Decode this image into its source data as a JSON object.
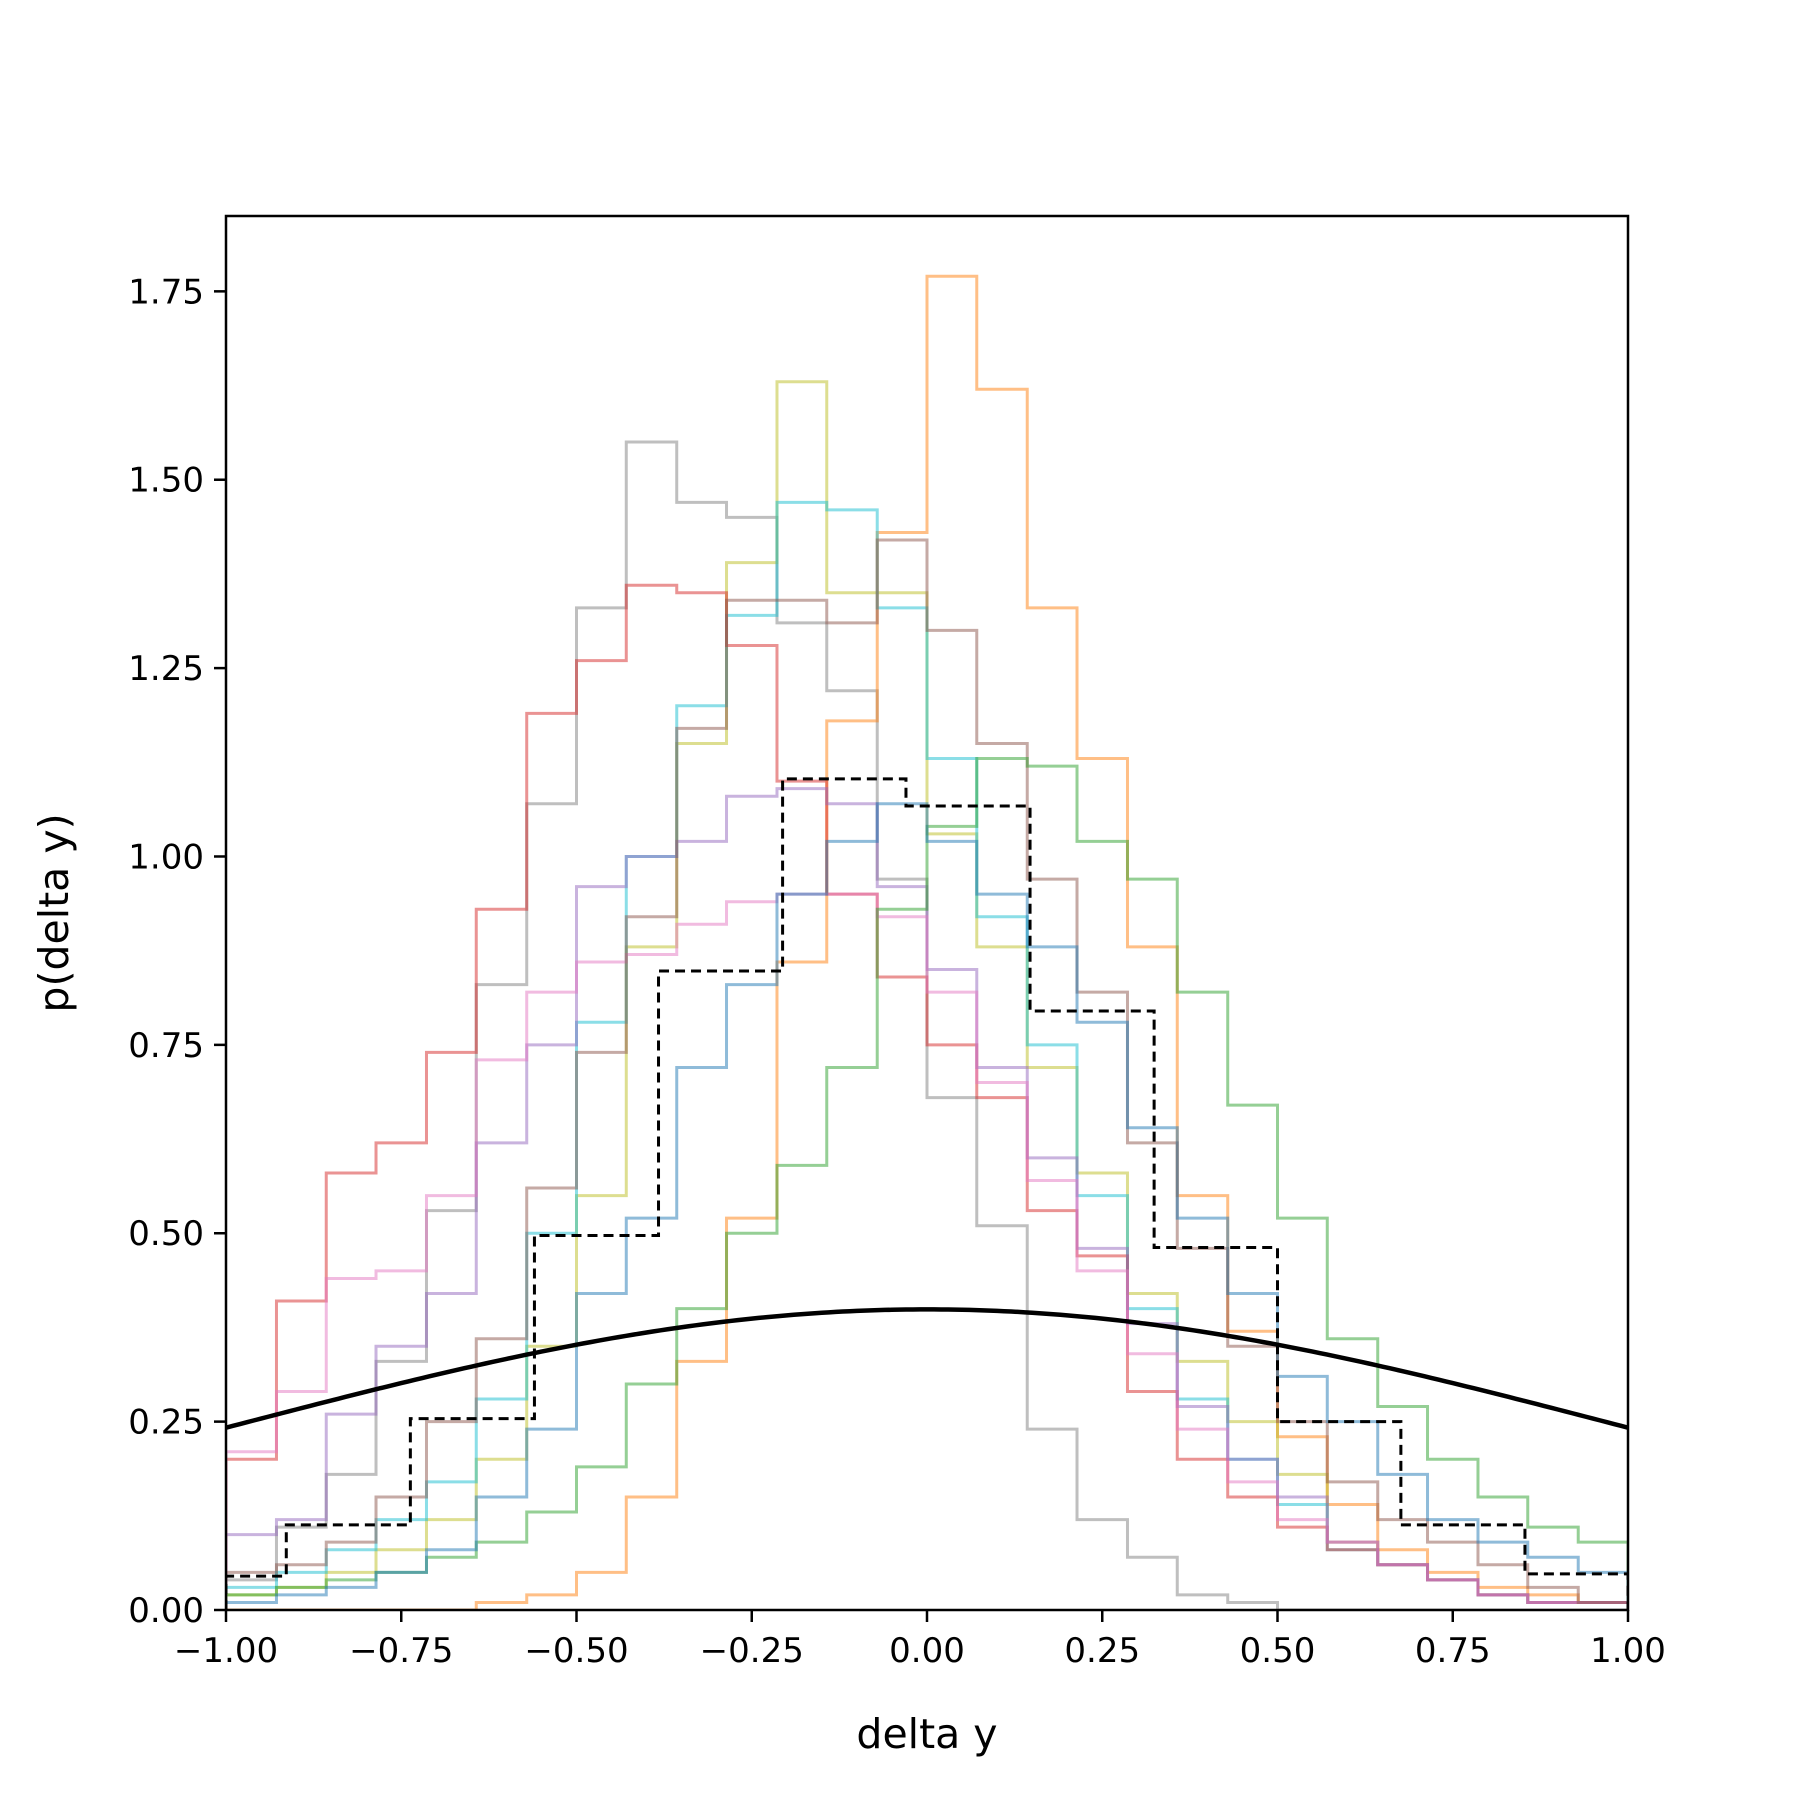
{
  "chart_data": {
    "type": "histogram",
    "xlabel": "delta y",
    "ylabel": "p(delta y)",
    "xlim": [
      -1.0,
      1.0
    ],
    "ylim": [
      0.0,
      1.85
    ],
    "x_ticks": [
      "−1.00",
      "−0.75",
      "−0.50",
      "−0.25",
      "0.00",
      "0.25",
      "0.50",
      "0.75",
      "1.00"
    ],
    "x_tick_values": [
      -1.0,
      -0.75,
      -0.5,
      -0.25,
      0.0,
      0.25,
      0.5,
      0.75,
      1.0
    ],
    "y_ticks": [
      "0.00",
      "0.25",
      "0.50",
      "0.75",
      "1.00",
      "1.25",
      "1.50",
      "1.75"
    ],
    "y_tick_values": [
      0.0,
      0.25,
      0.5,
      0.75,
      1.0,
      1.25,
      1.5,
      1.75
    ],
    "grid": false,
    "legend": "none",
    "series": [
      {
        "style": "step",
        "color": "#7f7f7f",
        "edges": [
          -1.0,
          -0.928,
          -0.857,
          -0.786,
          -0.714,
          -0.643,
          -0.571,
          -0.5,
          -0.429,
          -0.357,
          -0.286,
          -0.214,
          -0.143,
          -0.071,
          0.0,
          0.071,
          0.143,
          0.214,
          0.286,
          0.357,
          0.429,
          0.5,
          0.571,
          0.643,
          0.714,
          0.786,
          0.857,
          0.929,
          1.0
        ],
        "values": [
          0.04,
          0.11,
          0.18,
          0.33,
          0.53,
          0.83,
          1.07,
          1.33,
          1.55,
          1.47,
          1.45,
          1.31,
          1.22,
          0.97,
          0.68,
          0.51,
          0.24,
          0.12,
          0.07,
          0.02,
          0.01,
          0.0,
          0.0,
          0.0,
          0.0,
          0.0,
          0.0,
          0.0
        ]
      },
      {
        "style": "step",
        "color": "#ff7f0e",
        "edges": [
          -1.0,
          -0.928,
          -0.857,
          -0.786,
          -0.714,
          -0.643,
          -0.571,
          -0.5,
          -0.429,
          -0.357,
          -0.286,
          -0.214,
          -0.143,
          -0.071,
          0.0,
          0.071,
          0.143,
          0.214,
          0.286,
          0.357,
          0.429,
          0.5,
          0.571,
          0.643,
          0.714,
          0.786,
          0.857,
          0.929,
          1.0
        ],
        "values": [
          0.0,
          0.0,
          0.0,
          0.0,
          0.0,
          0.01,
          0.02,
          0.05,
          0.15,
          0.33,
          0.52,
          0.86,
          1.18,
          1.43,
          1.77,
          1.62,
          1.33,
          1.13,
          0.88,
          0.55,
          0.37,
          0.23,
          0.14,
          0.08,
          0.05,
          0.03,
          0.02,
          0.01
        ]
      },
      {
        "style": "step",
        "color": "#bcbd22",
        "edges": [
          -1.0,
          -0.928,
          -0.857,
          -0.786,
          -0.714,
          -0.643,
          -0.571,
          -0.5,
          -0.429,
          -0.357,
          -0.286,
          -0.214,
          -0.143,
          -0.071,
          0.0,
          0.071,
          0.143,
          0.214,
          0.286,
          0.357,
          0.429,
          0.5,
          0.571,
          0.643,
          0.714,
          0.786,
          0.857,
          0.929,
          1.0
        ],
        "values": [
          0.02,
          0.03,
          0.05,
          0.08,
          0.12,
          0.2,
          0.35,
          0.55,
          0.88,
          1.15,
          1.39,
          1.63,
          1.35,
          1.35,
          1.03,
          0.88,
          0.72,
          0.58,
          0.42,
          0.33,
          0.25,
          0.18,
          0.09,
          0.06,
          0.04,
          0.02,
          0.01,
          0.01
        ]
      },
      {
        "style": "step",
        "color": "#17becf",
        "edges": [
          -1.0,
          -0.928,
          -0.857,
          -0.786,
          -0.714,
          -0.643,
          -0.571,
          -0.5,
          -0.429,
          -0.357,
          -0.286,
          -0.214,
          -0.143,
          -0.071,
          0.0,
          0.071,
          0.143,
          0.214,
          0.286,
          0.357,
          0.429,
          0.5,
          0.571,
          0.643,
          0.714,
          0.786,
          0.857,
          0.929,
          1.0
        ],
        "values": [
          0.03,
          0.05,
          0.08,
          0.12,
          0.17,
          0.28,
          0.5,
          0.78,
          1.0,
          1.2,
          1.32,
          1.47,
          1.46,
          1.33,
          1.13,
          0.92,
          0.75,
          0.55,
          0.4,
          0.28,
          0.2,
          0.14,
          0.08,
          0.06,
          0.04,
          0.02,
          0.01,
          0.01
        ]
      },
      {
        "style": "step",
        "color": "#d62728",
        "edges": [
          -1.0,
          -0.928,
          -0.857,
          -0.786,
          -0.714,
          -0.643,
          -0.571,
          -0.5,
          -0.429,
          -0.357,
          -0.286,
          -0.214,
          -0.143,
          -0.071,
          0.0,
          0.071,
          0.143,
          0.214,
          0.286,
          0.357,
          0.429,
          0.5,
          0.571,
          0.643,
          0.714,
          0.786,
          0.857,
          0.929,
          1.0
        ],
        "values": [
          0.2,
          0.41,
          0.58,
          0.62,
          0.74,
          0.93,
          1.19,
          1.26,
          1.36,
          1.35,
          1.28,
          1.1,
          0.95,
          0.84,
          0.75,
          0.68,
          0.53,
          0.47,
          0.29,
          0.2,
          0.15,
          0.11,
          0.08,
          0.06,
          0.04,
          0.02,
          0.01,
          0.01
        ]
      },
      {
        "style": "step",
        "color": "#9467bd",
        "edges": [
          -1.0,
          -0.928,
          -0.857,
          -0.786,
          -0.714,
          -0.643,
          -0.571,
          -0.5,
          -0.429,
          -0.357,
          -0.286,
          -0.214,
          -0.143,
          -0.071,
          0.0,
          0.071,
          0.143,
          0.214,
          0.286,
          0.357,
          0.429,
          0.5,
          0.571,
          0.643,
          0.714,
          0.786,
          0.857,
          0.929,
          1.0
        ],
        "values": [
          0.1,
          0.12,
          0.26,
          0.35,
          0.42,
          0.62,
          0.75,
          0.96,
          1.0,
          1.02,
          1.08,
          1.09,
          1.07,
          0.96,
          0.85,
          0.72,
          0.6,
          0.48,
          0.38,
          0.27,
          0.2,
          0.15,
          0.09,
          0.06,
          0.04,
          0.02,
          0.01,
          0.01
        ]
      },
      {
        "style": "step",
        "color": "#e377c2",
        "edges": [
          -1.0,
          -0.928,
          -0.857,
          -0.786,
          -0.714,
          -0.643,
          -0.571,
          -0.5,
          -0.429,
          -0.357,
          -0.286,
          -0.214,
          -0.143,
          -0.071,
          0.0,
          0.071,
          0.143,
          0.214,
          0.286,
          0.357,
          0.429,
          0.5,
          0.571,
          0.643,
          0.714,
          0.786,
          0.857,
          0.929,
          1.0
        ],
        "values": [
          0.21,
          0.29,
          0.44,
          0.45,
          0.55,
          0.73,
          0.82,
          0.86,
          0.87,
          0.91,
          0.94,
          0.95,
          0.95,
          0.92,
          0.82,
          0.7,
          0.57,
          0.45,
          0.34,
          0.24,
          0.17,
          0.12,
          0.09,
          0.06,
          0.04,
          0.02,
          0.01,
          0.01
        ]
      },
      {
        "style": "step",
        "color": "#8c564b",
        "edges": [
          -1.0,
          -0.928,
          -0.857,
          -0.786,
          -0.714,
          -0.643,
          -0.571,
          -0.5,
          -0.429,
          -0.357,
          -0.286,
          -0.214,
          -0.143,
          -0.071,
          0.0,
          0.071,
          0.143,
          0.214,
          0.286,
          0.357,
          0.429,
          0.5,
          0.571,
          0.643,
          0.714,
          0.786,
          0.857,
          0.929,
          1.0
        ],
        "values": [
          0.05,
          0.06,
          0.09,
          0.15,
          0.25,
          0.36,
          0.56,
          0.74,
          0.92,
          1.17,
          1.34,
          1.34,
          1.31,
          1.42,
          1.3,
          1.15,
          0.97,
          0.82,
          0.62,
          0.48,
          0.35,
          0.25,
          0.17,
          0.12,
          0.09,
          0.06,
          0.03,
          0.01
        ]
      },
      {
        "style": "step",
        "color": "#2ca02c",
        "edges": [
          -1.0,
          -0.928,
          -0.857,
          -0.786,
          -0.714,
          -0.643,
          -0.571,
          -0.5,
          -0.429,
          -0.357,
          -0.286,
          -0.214,
          -0.143,
          -0.071,
          0.0,
          0.071,
          0.143,
          0.214,
          0.286,
          0.357,
          0.429,
          0.5,
          0.571,
          0.643,
          0.714,
          0.786,
          0.857,
          0.929,
          1.0
        ],
        "values": [
          0.02,
          0.03,
          0.04,
          0.05,
          0.07,
          0.09,
          0.13,
          0.19,
          0.3,
          0.4,
          0.5,
          0.59,
          0.72,
          0.93,
          1.04,
          1.13,
          1.12,
          1.02,
          0.97,
          0.82,
          0.67,
          0.52,
          0.36,
          0.27,
          0.2,
          0.15,
          0.11,
          0.09
        ]
      },
      {
        "style": "step",
        "color": "#1f77b4",
        "edges": [
          -1.0,
          -0.928,
          -0.857,
          -0.786,
          -0.714,
          -0.643,
          -0.571,
          -0.5,
          -0.429,
          -0.357,
          -0.286,
          -0.214,
          -0.143,
          -0.071,
          0.0,
          0.071,
          0.143,
          0.214,
          0.286,
          0.357,
          0.429,
          0.5,
          0.571,
          0.643,
          0.714,
          0.786,
          0.857,
          0.929,
          1.0
        ],
        "values": [
          0.01,
          0.02,
          0.03,
          0.05,
          0.08,
          0.15,
          0.24,
          0.42,
          0.52,
          0.72,
          0.83,
          0.95,
          1.02,
          1.07,
          1.02,
          0.95,
          0.88,
          0.78,
          0.64,
          0.52,
          0.42,
          0.31,
          0.25,
          0.18,
          0.12,
          0.09,
          0.07,
          0.05
        ]
      },
      {
        "style": "step",
        "color": "#000000",
        "dashed": true,
        "solid_alpha": 1.0,
        "edges": [
          -1.0,
          -0.914,
          -0.737,
          -0.56,
          -0.383,
          -0.206,
          -0.03,
          0.147,
          0.324,
          0.5,
          0.676,
          0.853,
          1.0
        ],
        "values": [
          0.045,
          0.113,
          0.254,
          0.497,
          0.848,
          1.103,
          1.067,
          0.795,
          0.481,
          0.25,
          0.113,
          0.048
        ]
      }
    ],
    "curve": {
      "style": "line",
      "color": "#000000",
      "function": "normal pdf, mean 0, sd 1",
      "x": [
        -1.0,
        -0.9,
        -0.8,
        -0.7,
        -0.6,
        -0.5,
        -0.4,
        -0.3,
        -0.2,
        -0.1,
        0.0,
        0.1,
        0.2,
        0.3,
        0.4,
        0.5,
        0.6,
        0.7,
        0.8,
        0.9,
        1.0
      ],
      "y": [
        0.242,
        0.266,
        0.29,
        0.312,
        0.333,
        0.352,
        0.368,
        0.381,
        0.391,
        0.397,
        0.399,
        0.397,
        0.391,
        0.381,
        0.368,
        0.352,
        0.333,
        0.312,
        0.29,
        0.266,
        0.242
      ]
    }
  }
}
